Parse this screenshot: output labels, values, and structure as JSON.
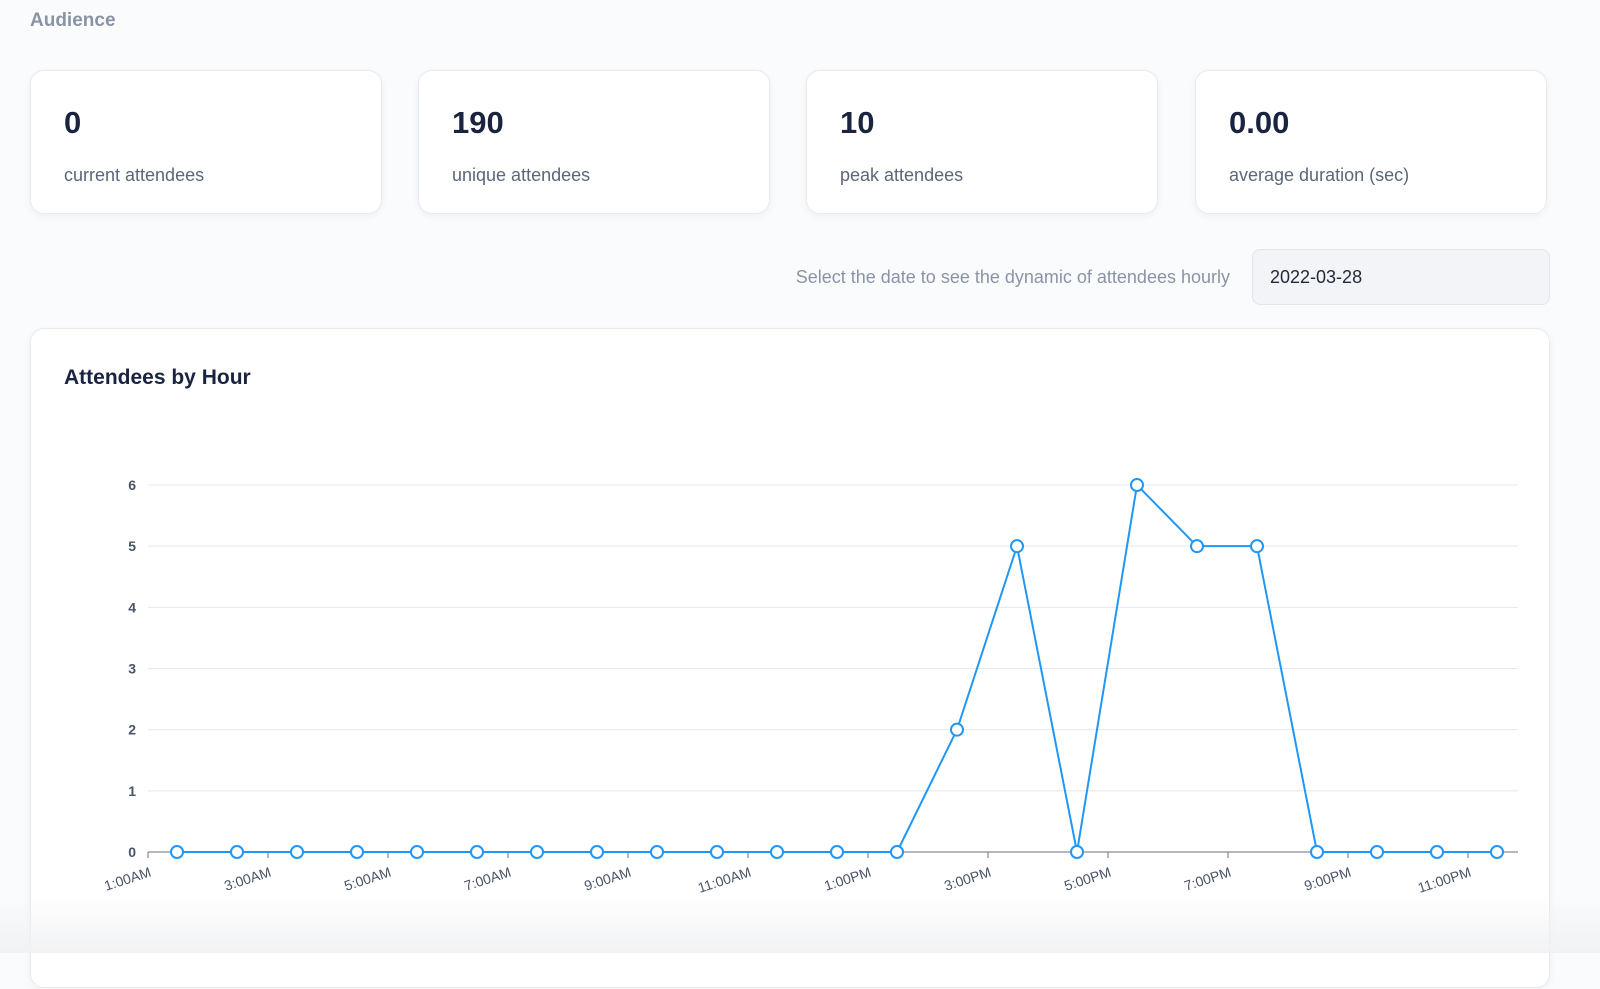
{
  "section_title": "Audience",
  "stats": [
    {
      "value": "0",
      "label": "current attendees"
    },
    {
      "value": "190",
      "label": "unique attendees"
    },
    {
      "value": "10",
      "label": "peak attendees"
    },
    {
      "value": "0.00",
      "label": "average duration (sec)"
    }
  ],
  "date_picker": {
    "prompt": "Select the date to see the dynamic of attendees hourly",
    "value": "2022-03-28"
  },
  "colors": {
    "accent": "#2196f3",
    "grid": "#e5e8ee"
  },
  "chart_data": {
    "type": "line",
    "title": "Attendees by Hour",
    "x": [
      "1:00AM",
      "2:00AM",
      "3:00AM",
      "4:00AM",
      "5:00AM",
      "6:00AM",
      "7:00AM",
      "8:00AM",
      "9:00AM",
      "10:00AM",
      "11:00AM",
      "12:00PM",
      "1:00PM",
      "2:00PM",
      "3:00PM",
      "4:00PM",
      "5:00PM",
      "6:00PM",
      "7:00PM",
      "8:00PM",
      "9:00PM",
      "10:00PM",
      "11:00PM"
    ],
    "tick_labels": [
      "1:00AM",
      "3:00AM",
      "5:00AM",
      "7:00AM",
      "9:00AM",
      "11:00AM",
      "1:00PM",
      "3:00PM",
      "5:00PM",
      "7:00PM",
      "9:00PM",
      "11:00PM"
    ],
    "values": [
      0,
      0,
      0,
      0,
      0,
      0,
      0,
      0,
      0,
      0,
      0,
      0,
      0,
      2,
      5,
      0,
      6,
      5,
      5,
      0,
      0,
      0,
      0
    ],
    "yticks": [
      0,
      1,
      2,
      3,
      4,
      5,
      6
    ],
    "ylim": [
      0,
      6
    ],
    "grid": true,
    "legend": "none"
  }
}
